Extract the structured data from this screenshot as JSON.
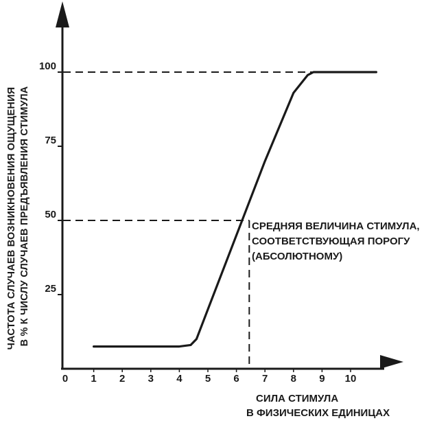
{
  "chart_data": {
    "type": "line",
    "title": "",
    "xlabel_lines": [
      "СИЛА СТИМУЛА",
      "В ФИЗИЧЕСКИХ ЕДИНИЦАХ"
    ],
    "ylabel_lines": [
      "ЧАСТОТА СЛУЧАЕВ ВОЗНИКНОВЕНИЯ ОЩУЩЕНИЯ",
      "В % К ЧИСЛУ СЛУЧАЕВ ПРЕДЪЯВЛЕНИЯ СТИМУЛА"
    ],
    "x_ticks": [
      "0",
      "1",
      "2",
      "3",
      "4",
      "5",
      "6",
      "7",
      "8",
      "9",
      "10"
    ],
    "y_ticks": [
      "25",
      "50",
      "75",
      "100"
    ],
    "xlim": [
      0,
      11
    ],
    "ylim": [
      0,
      120
    ],
    "grid": false,
    "series": [
      {
        "x": [
          1,
          2,
          3,
          4,
          4.4,
          4.6,
          5,
          6,
          7,
          8,
          8.5,
          8.7,
          9,
          10,
          10.9
        ],
        "y": [
          7.5,
          7.5,
          7.5,
          7.5,
          8,
          10,
          20,
          45,
          70,
          93,
          99,
          100,
          100,
          100,
          100
        ]
      }
    ],
    "reference_lines": {
      "y100": 100,
      "y50": 50,
      "x_threshold": 6.45
    },
    "annotation_lines": [
      "СРЕДНЯЯ ВЕЛИЧИНА СТИМУЛА,",
      "СООТВЕТСТВУЮЩАЯ ПОРОГУ",
      "(АБСОЛЮТНОМУ)"
    ]
  }
}
